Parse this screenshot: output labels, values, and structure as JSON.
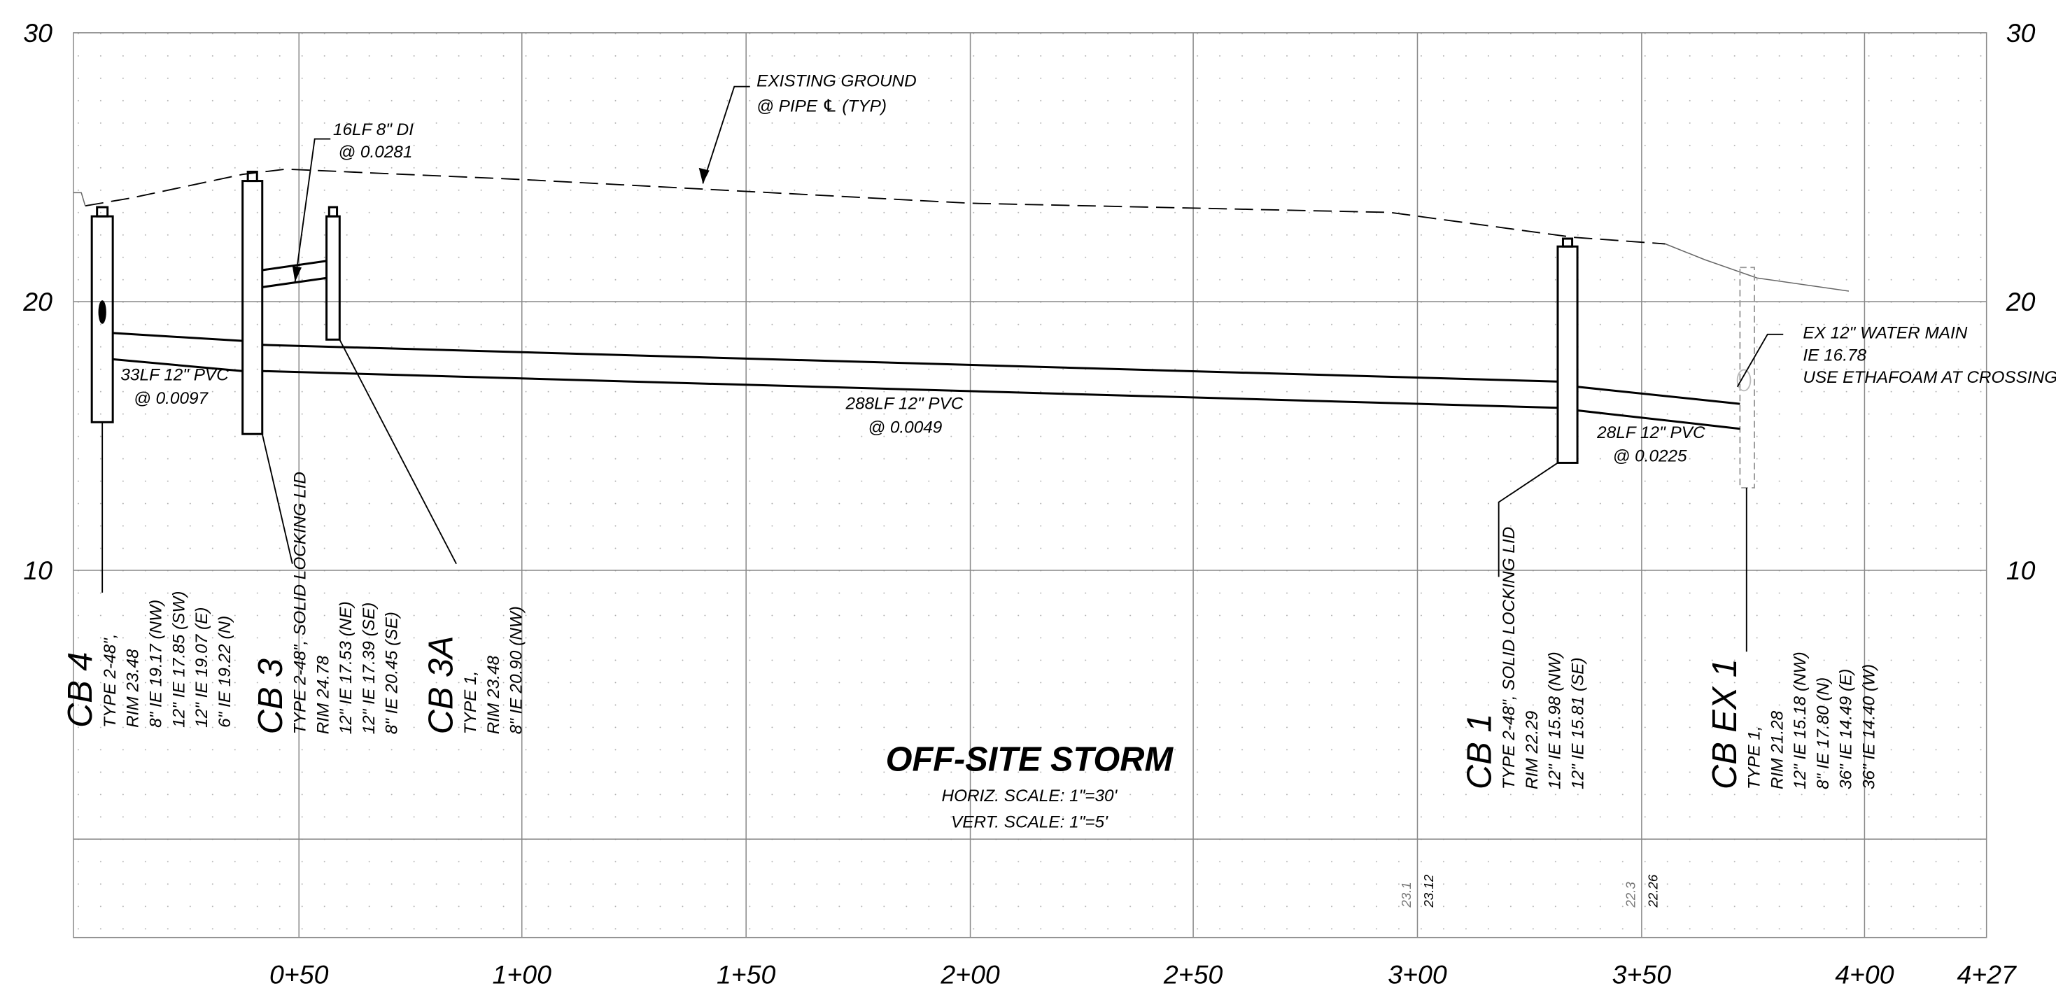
{
  "axes": {
    "left_elevations": [
      "30",
      "20",
      "10"
    ],
    "right_elevations": [
      "30",
      "20",
      "10"
    ],
    "stations": [
      "0+50",
      "1+00",
      "1+50",
      "2+00",
      "2+50",
      "3+00",
      "3+50",
      "4+00",
      "4+27"
    ]
  },
  "notes": {
    "existing_ground": [
      "EXISTING GROUND",
      "@ PIPE ℄ (TYP)"
    ],
    "di_pipe": [
      "16LF 8\" DI",
      "@ 0.0281"
    ],
    "water_main": [
      "EX 12\" WATER MAIN",
      "IE 16.78",
      "USE ETHAFOAM AT CROSSING"
    ]
  },
  "pipes": [
    {
      "label": "33LF 12\" PVC",
      "slope": "@ 0.0097"
    },
    {
      "label": "288LF 12\" PVC",
      "slope": "@ 0.0049"
    },
    {
      "label": "28LF 12\" PVC",
      "slope": "@ 0.0225"
    }
  ],
  "structures": [
    {
      "name": "CB 4",
      "lines": [
        "TYPE 2-48\",",
        "RIM 23.48",
        "8\" IE 19.17 (NW)",
        "12\" IE 17.85 (SW)",
        "12\" IE 19.07 (E)",
        "6\" IE 19.22 (N)"
      ]
    },
    {
      "name": "CB 3",
      "lines": [
        "TYPE 2-48\", SOLID LOCKING LID",
        "RIM 24.78",
        "12\" IE 17.53 (NE)",
        "12\" IE 17.39 (SE)",
        "8\" IE 20.45 (SE)"
      ]
    },
    {
      "name": "CB 3A",
      "lines": [
        "TYPE 1,",
        "RIM 23.48",
        "8\" IE 20.90 (NW)"
      ]
    },
    {
      "name": "CB 1",
      "lines": [
        "TYPE 2-48\", SOLID LOCKING LID",
        "RIM 22.29",
        "12\" IE 15.98 (NW)",
        "12\" IE 15.81 (SE)"
      ]
    },
    {
      "name": "CB EX 1",
      "lines": [
        "TYPE 1,",
        "RIM 21.28",
        "12\" IE 15.18 (NW)",
        "8\" IE 17.80 (N)",
        "36\" IE 14.49 (E)",
        "36\" IE 14.40 (W)"
      ]
    }
  ],
  "title": {
    "main": "OFF-SITE STORM",
    "horiz_scale": "HORIZ. SCALE: 1\"=30'",
    "vert_scale": "VERT. SCALE: 1\"=5'"
  },
  "ground_elevations": [
    {
      "existing": "23.1",
      "proposed": "23.12"
    },
    {
      "existing": "22.3",
      "proposed": "22.26"
    }
  ]
}
